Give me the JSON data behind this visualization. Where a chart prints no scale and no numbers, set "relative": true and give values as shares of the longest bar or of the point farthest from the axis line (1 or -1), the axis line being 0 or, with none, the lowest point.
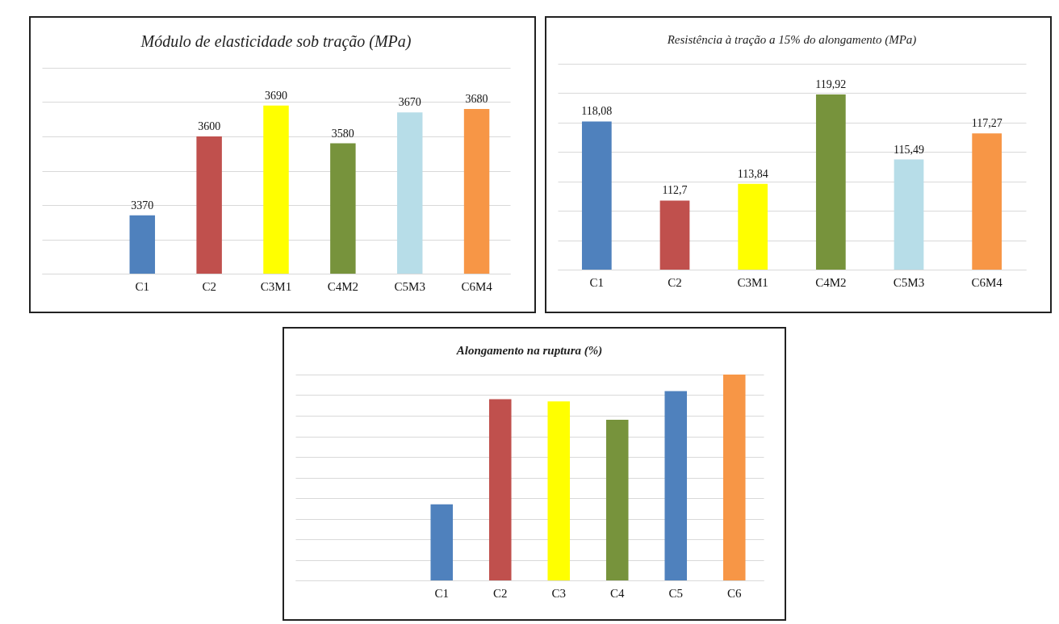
{
  "chart_data": [
    {
      "type": "bar",
      "title": "Módulo de elasticidade sob tração (MPa)",
      "categories": [
        null,
        "C1",
        "C2",
        "C3M1",
        "C4M2",
        "C5M3",
        "C6M4"
      ],
      "values": [
        null,
        3370,
        3600,
        3690,
        3580,
        3670,
        3680
      ],
      "value_labels": [
        null,
        "3370",
        "3600",
        "3690",
        "3580",
        "3670",
        "3680"
      ],
      "colors": [
        "#4f81bd",
        "#4f81bd",
        "#c0504d",
        "#ffff00",
        "#77933c",
        "#b7dde8",
        "#f79646"
      ],
      "ylim": [
        3200,
        3800
      ],
      "yticks": [
        {
          "value": 3200,
          "label": null
        },
        {
          "value": 3300,
          "label": null
        },
        {
          "value": 3400,
          "label": null
        },
        {
          "value": 3500,
          "label": null
        },
        {
          "value": 3600,
          "label": null
        },
        {
          "value": 3700,
          "label": null
        },
        {
          "value": 3800,
          "label": null
        }
      ],
      "grid": "y",
      "tick_labels": "x"
    },
    {
      "type": "bar",
      "title": "Resistência à tração a 15% do alongamento (MPa)",
      "categories": [
        "C1",
        "C2",
        "C3M1",
        "C4M2",
        "C5M3",
        "C6M4"
      ],
      "values": [
        118.08,
        112.7,
        113.84,
        119.92,
        115.49,
        117.27
      ],
      "value_labels": [
        "118,08",
        "112,7",
        "113,84",
        "119,92",
        "115,49",
        "117,27"
      ],
      "colors": [
        "#4f81bd",
        "#c0504d",
        "#ffff00",
        "#77933c",
        "#b7dde8",
        "#f79646"
      ],
      "ylim": [
        108,
        122
      ],
      "yticks": [
        {
          "value": 108,
          "label": null
        },
        {
          "value": 110,
          "label": null
        },
        {
          "value": 112,
          "label": null
        },
        {
          "value": 114,
          "label": null
        },
        {
          "value": 116,
          "label": null
        },
        {
          "value": 118,
          "label": null
        },
        {
          "value": 120,
          "label": null
        },
        {
          "value": 122,
          "label": null
        }
      ],
      "grid": "y",
      "tick_labels": "x"
    },
    {
      "type": "bar",
      "title": "Alongamento na ruptura (%)",
      "categories": [
        null,
        null,
        "C1",
        "C2",
        "C3",
        "C4",
        "C5",
        "C6"
      ],
      "values": [
        null,
        null,
        0.37,
        0.88,
        0.87,
        0.78,
        0.92,
        1
      ],
      "colors": [
        "#4f81bd",
        "#4f81bd",
        "#4f81bd",
        "#c0504d",
        "#ffff00",
        "#77933c",
        "#4f81bd",
        "#f79646"
      ],
      "relative": true,
      "grid": "y",
      "tick_labels": "x"
    }
  ]
}
